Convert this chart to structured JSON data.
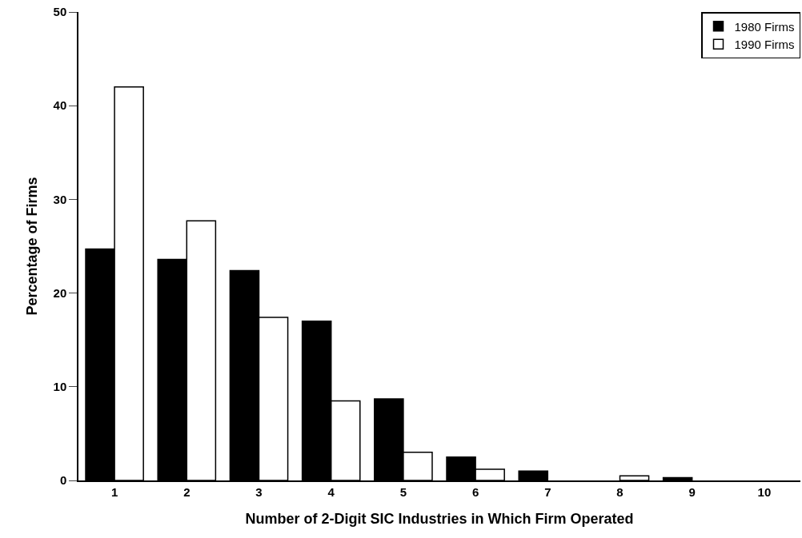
{
  "chart_data": {
    "type": "bar",
    "xlabel": "Number of 2-Digit SIC Industries in Which Firm Operated",
    "ylabel": "Percentage of Firms",
    "categories": [
      "1",
      "2",
      "3",
      "4",
      "5",
      "6",
      "7",
      "8",
      "9",
      "10"
    ],
    "series": [
      {
        "name": "1980 Firms",
        "color": "#000000",
        "values": [
          24.7,
          23.6,
          22.4,
          17.0,
          8.7,
          2.5,
          1.0,
          0,
          0.3,
          0
        ]
      },
      {
        "name": "1990 Firms",
        "color": "#ffffff",
        "values": [
          42.0,
          27.7,
          17.4,
          8.5,
          3.0,
          1.2,
          0,
          0.5,
          0,
          0
        ]
      }
    ],
    "ylim": [
      0,
      50
    ],
    "yticks": [
      0,
      10,
      20,
      30,
      40,
      50
    ],
    "legend": "top right"
  }
}
